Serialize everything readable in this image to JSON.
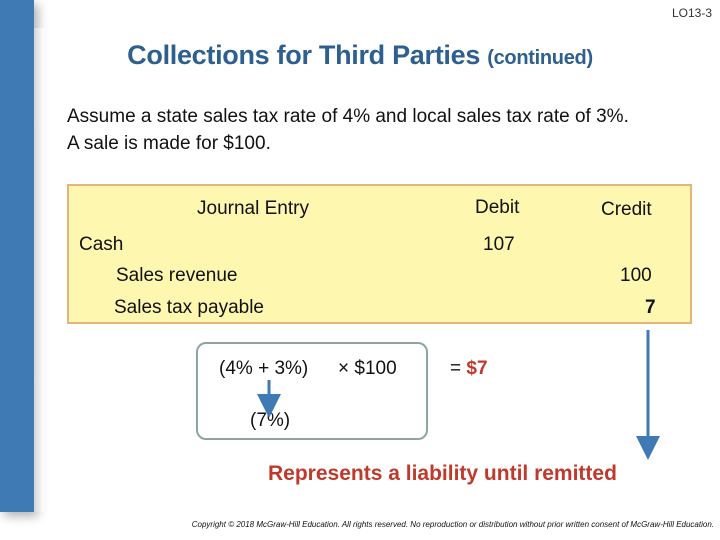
{
  "slide_code": "LO13-3",
  "title": {
    "main": "Collections for Third Parties",
    "sub": "(continued)"
  },
  "intro": {
    "line1": "Assume a state sales tax rate of 4% and local sales tax rate of 3%.",
    "line2": "A sale is made for $100."
  },
  "journal": {
    "headers": {
      "entry": "Journal Entry",
      "debit": "Debit",
      "credit": "Credit"
    },
    "rows": [
      {
        "account": "Cash",
        "debit": "107",
        "credit": ""
      },
      {
        "account": "Sales revenue",
        "debit": "",
        "credit": "100"
      },
      {
        "account": "Sales tax payable",
        "debit": "",
        "credit": "7"
      }
    ]
  },
  "formula": {
    "rates": "(4% + 3%)",
    "times": "× $100",
    "equals": "= ",
    "result": "$7",
    "combined": "(7%)"
  },
  "liability_note": "Represents a liability until remitted",
  "copyright": "Copyright © 2018 McGraw-Hill Education. All rights reserved. No reproduction or distribution without prior written consent of McGraw-Hill Education.",
  "colors": {
    "title": "#2d5f8f",
    "accent_red": "#c0392b",
    "box_fill": "#fdf7b0",
    "box_border": "#e6b37a",
    "arrow": "#3f7ab4"
  }
}
